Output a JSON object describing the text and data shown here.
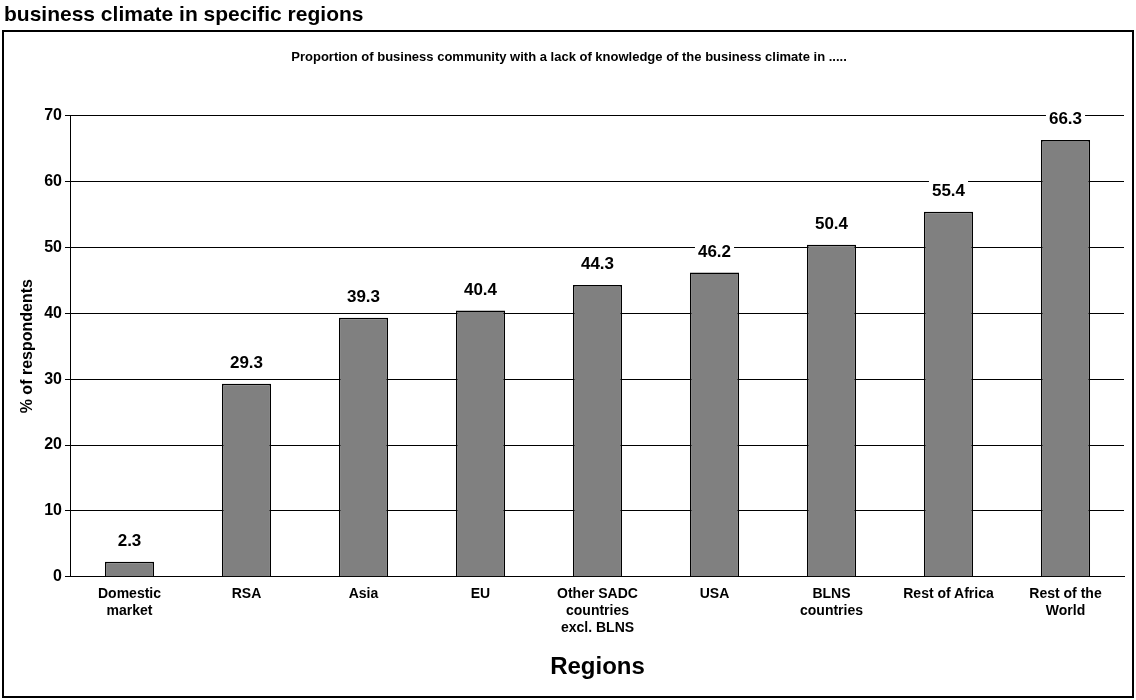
{
  "chart_data": {
    "type": "bar",
    "title": "business climate in specific regions",
    "subtitle": "Proportion of business community with a lack of knowledge of the business climate in .....",
    "categories": [
      "Domestic market",
      "RSA",
      "Asia",
      "EU",
      "Other SADC countries excl. BLNS",
      "USA",
      "BLNS countries",
      "Rest of Africa",
      "Rest of the World"
    ],
    "values": [
      2.3,
      29.3,
      39.3,
      40.4,
      44.3,
      46.2,
      50.4,
      55.4,
      66.3
    ],
    "color": "#808080",
    "ylim": [
      0,
      70
    ],
    "yticks": [
      0,
      10,
      20,
      30,
      40,
      50,
      60,
      70
    ],
    "grid": "y",
    "legend": false,
    "data_labels": true,
    "xlabel": "Regions",
    "ylabel": "% of respondents"
  }
}
